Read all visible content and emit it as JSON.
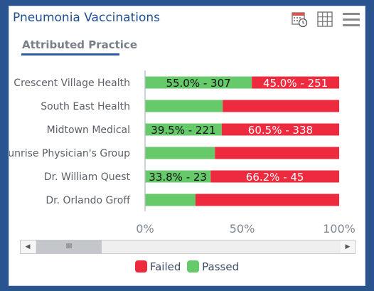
{
  "widget": {
    "title": "Pneumonia Vaccinations",
    "tab_label": "Attributed Practice"
  },
  "icons": {
    "calendar": "calendar-clock-icon",
    "grid": "grid-icon",
    "menu": "hamburger-menu-icon"
  },
  "colors": {
    "failed": "#ee2b3e",
    "passed": "#66c96a",
    "axis_text": "#7f8790",
    "category_text": "#5b5f66"
  },
  "scrollbar": {
    "left_arrow": "◀",
    "right_arrow": "▶",
    "thumb_grip": "III"
  },
  "chart_data": {
    "type": "bar",
    "orientation": "horizontal",
    "stacked": true,
    "percent": true,
    "categories": [
      "Crescent Village Health",
      "South East Health",
      "Midtown Medical",
      "Sunrise Physician's Group",
      "Dr. William Quest",
      "Dr. Orlando Groff"
    ],
    "series": [
      {
        "name": "Passed",
        "color": "#66c96a",
        "values": [
          55.0,
          40.0,
          39.5,
          36.0,
          33.8,
          26.0
        ],
        "labels": [
          "55.0% - 307",
          "",
          "39.5% - 221",
          "",
          "33.8% - 23",
          ""
        ]
      },
      {
        "name": "Failed",
        "color": "#ee2b3e",
        "values": [
          45.0,
          60.0,
          60.5,
          64.0,
          66.2,
          74.0
        ],
        "labels": [
          "45.0% - 251",
          "",
          "60.5% - 338",
          "",
          "66.2% - 45",
          ""
        ]
      }
    ],
    "xlim": [
      0,
      100
    ],
    "xticks": [
      "0%",
      "50%",
      "100%"
    ],
    "legend": {
      "position": "bottom",
      "entries": [
        "Failed",
        "Passed"
      ]
    }
  }
}
